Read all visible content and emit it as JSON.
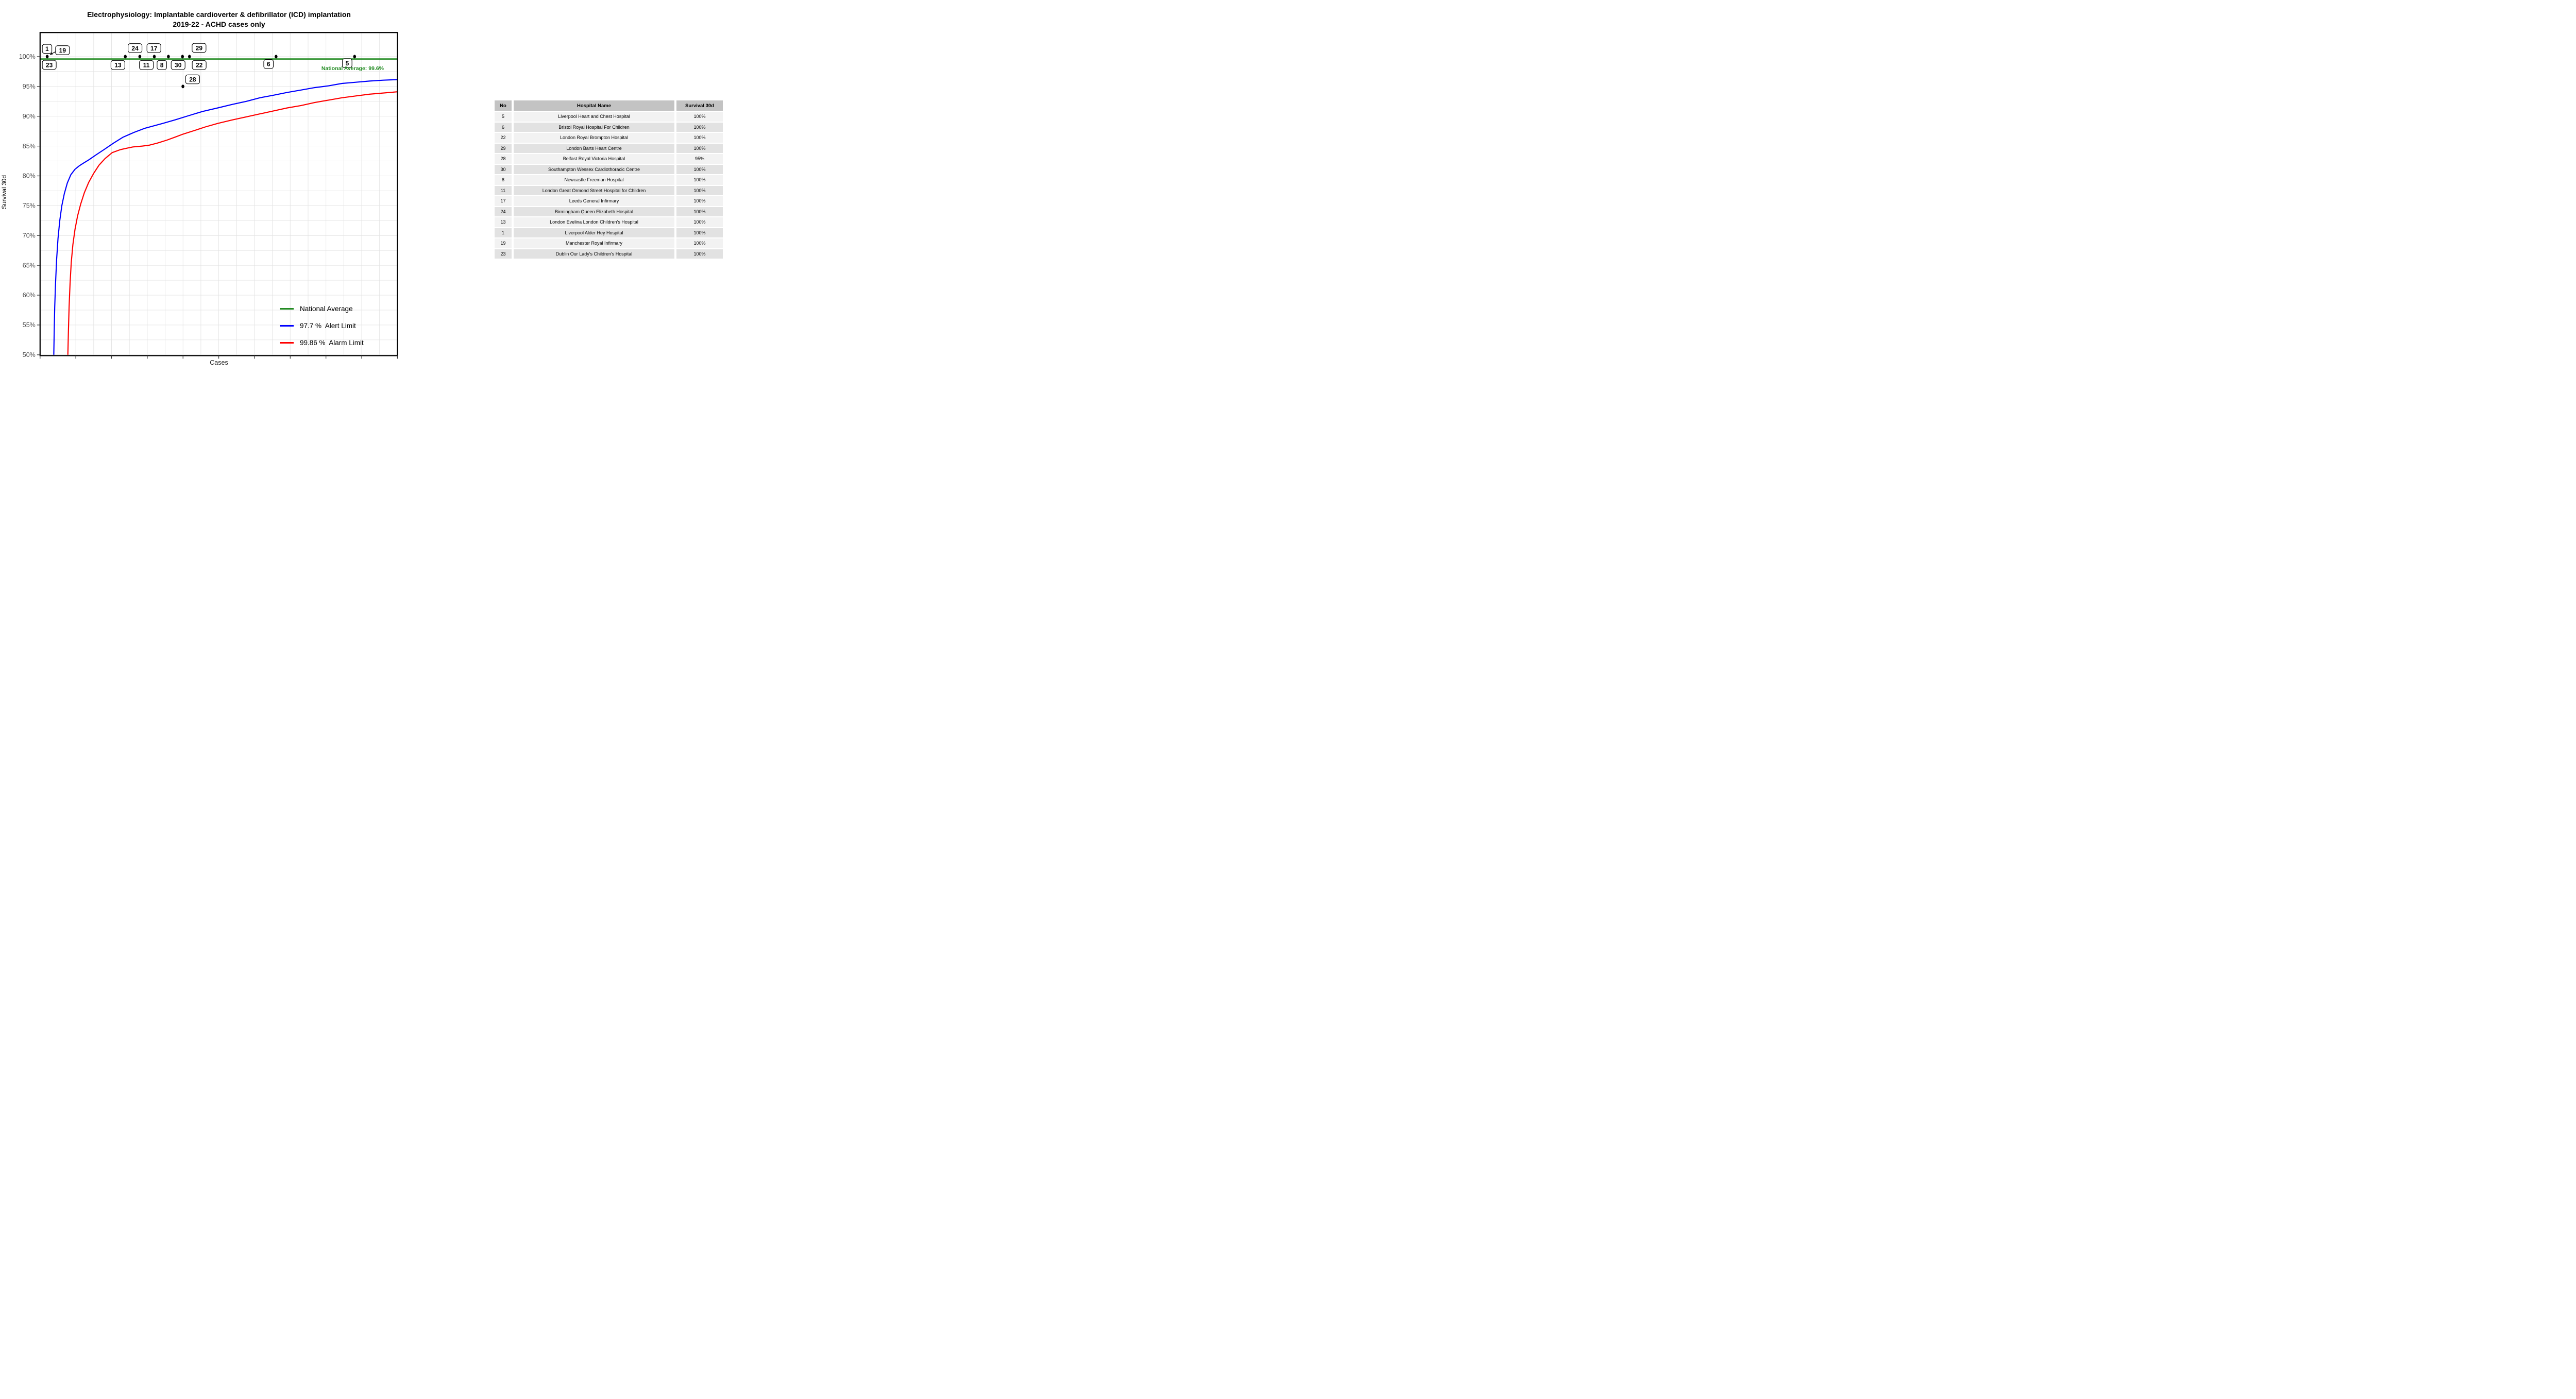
{
  "title": {
    "line1": "Electrophysiology: Implantable cardioverter & defibrillator (ICD) implantation",
    "line2": "2019-22 - ACHD cases only"
  },
  "axes": {
    "y_label": "Survival 30d",
    "x_label": "Cases",
    "y_tick_labels": [
      "100%",
      "95%",
      "90%",
      "85%",
      "80%",
      "75%",
      "70%",
      "65%",
      "60%",
      "55%",
      "50%"
    ]
  },
  "annotation": {
    "national_average_text": "National Average: 99.6%"
  },
  "legend": {
    "items": [
      {
        "label": "National Average",
        "color": "#228B22"
      },
      {
        "label": "97.7 %  Alert Limit",
        "color": "#0000FF"
      },
      {
        "label": "99.86 %  Alarm Limit",
        "color": "#FF0000"
      }
    ]
  },
  "colors": {
    "national_average": "#228B22",
    "alert_limit": "#0000FF",
    "alarm_limit": "#FF0000",
    "grid": "#e3e3e3",
    "axis": "#000000",
    "tick_text": "#4d4d4d",
    "point": "#000000",
    "table_header_bg": "#c3c3c3",
    "table_row_light": "#f2f2f2",
    "table_row_dark": "#e2e2e2"
  },
  "chart_data": {
    "type": "line",
    "title": "Electrophysiology: Implantable cardioverter & defibrillator (ICD) implantation 2019-22 - ACHD cases only",
    "xlabel": "Cases",
    "ylabel": "Survival 30d",
    "ylim": [
      50,
      100
    ],
    "y_tick_step": 5,
    "grid": "on",
    "legend_position": "inside-bottom-right",
    "national_average_pct": 99.6,
    "series": [
      {
        "name": "National Average",
        "style": "horizontal-line",
        "pct": 99.6
      },
      {
        "name": "97.7 %  Alert Limit",
        "style": "curve",
        "points": [
          [
            393,
            50
          ],
          [
            396,
            54
          ],
          [
            400,
            58
          ],
          [
            406,
            62
          ],
          [
            414,
            66
          ],
          [
            424,
            69.5
          ],
          [
            437,
            72.5
          ],
          [
            452,
            75
          ],
          [
            470,
            77
          ],
          [
            492,
            78.8
          ],
          [
            518,
            80.2
          ],
          [
            548,
            81.1
          ],
          [
            580,
            81.7
          ],
          [
            607,
            82.1
          ],
          [
            650,
            82.7
          ],
          [
            700,
            83.5
          ],
          [
            760,
            84.4
          ],
          [
            830,
            85.5
          ],
          [
            900,
            86.5
          ],
          [
            980,
            87.3
          ],
          [
            1060,
            88.0
          ],
          [
            1190,
            88.8
          ],
          [
            1280,
            89.4
          ],
          [
            1380,
            90.1
          ],
          [
            1480,
            90.8
          ],
          [
            1592,
            91.4
          ],
          [
            1700,
            92.0
          ],
          [
            1800,
            92.5
          ],
          [
            1900,
            93.1
          ],
          [
            1993,
            93.5
          ],
          [
            2100,
            94.0
          ],
          [
            2200,
            94.4
          ],
          [
            2300,
            94.8
          ],
          [
            2400,
            95.1
          ],
          [
            2500,
            95.5
          ],
          [
            2600,
            95.7
          ],
          [
            2700,
            95.9
          ],
          [
            2800,
            96.05
          ],
          [
            2905,
            96.15
          ]
        ]
      },
      {
        "name": "99.86 %  Alarm Limit",
        "style": "curve",
        "points": [
          [
            496,
            50
          ],
          [
            500,
            54
          ],
          [
            505,
            58
          ],
          [
            512,
            62
          ],
          [
            521,
            65.5
          ],
          [
            533,
            68.5
          ],
          [
            548,
            71
          ],
          [
            567,
            73.3
          ],
          [
            590,
            75.3
          ],
          [
            617,
            77.2
          ],
          [
            648,
            78.9
          ],
          [
            684,
            80.4
          ],
          [
            724,
            81.8
          ],
          [
            768,
            82.9
          ],
          [
            820,
            83.9
          ],
          [
            880,
            84.4
          ],
          [
            930,
            84.65
          ],
          [
            971,
            84.85
          ],
          [
            1040,
            85.0
          ],
          [
            1090,
            85.15
          ],
          [
            1150,
            85.5
          ],
          [
            1220,
            86.0
          ],
          [
            1280,
            86.5
          ],
          [
            1338,
            87.0
          ],
          [
            1420,
            87.6
          ],
          [
            1500,
            88.2
          ],
          [
            1592,
            88.8
          ],
          [
            1700,
            89.4
          ],
          [
            1800,
            89.9
          ],
          [
            1900,
            90.4
          ],
          [
            2000,
            90.9
          ],
          [
            2100,
            91.4
          ],
          [
            2200,
            91.8
          ],
          [
            2300,
            92.3
          ],
          [
            2400,
            92.7
          ],
          [
            2500,
            93.1
          ],
          [
            2600,
            93.4
          ],
          [
            2700,
            93.7
          ],
          [
            2800,
            93.9
          ],
          [
            2905,
            94.1
          ]
        ]
      }
    ],
    "hospital_points": [
      {
        "no": "1",
        "x": 345,
        "pct": 100,
        "label_cx": 344,
        "label_cy": 357
      },
      {
        "no": "19",
        "x": 345,
        "pct": 100,
        "label_cx": 457,
        "label_cy": 367,
        "arrow": {
          "x1": 414,
          "y1": 374,
          "x2": 366,
          "y2": 399
        }
      },
      {
        "no": "23",
        "x": 345,
        "pct": 100,
        "label_cx": 360,
        "label_cy": 474
      },
      {
        "no": "24",
        "x": 916,
        "pct": 100,
        "label_cx": 987,
        "label_cy": 352
      },
      {
        "no": "13",
        "x": 916,
        "pct": 100,
        "label_cx": 862,
        "label_cy": 475
      },
      {
        "no": "17",
        "x": 1022,
        "pct": 100,
        "label_cx": 1125,
        "label_cy": 352
      },
      {
        "no": "11",
        "x": 1128,
        "pct": 100,
        "label_cx": 1070,
        "label_cy": 475
      },
      {
        "no": "8",
        "x": 1231,
        "pct": 100,
        "label_cx": 1183,
        "label_cy": 475
      },
      {
        "no": "30",
        "x": 1334,
        "pct": 100,
        "label_cx": 1302,
        "label_cy": 475
      },
      {
        "no": "29",
        "x": 1385,
        "pct": 100,
        "label_cx": 1455,
        "label_cy": 350
      },
      {
        "no": "22",
        "x": 1385,
        "pct": 100,
        "label_cx": 1456,
        "label_cy": 475
      },
      {
        "no": "28",
        "x": 1337,
        "pct": 95,
        "label_cx": 1408,
        "label_cy": 580
      },
      {
        "no": "6",
        "x": 2018,
        "pct": 100,
        "label_cx": 1963,
        "label_cy": 468
      },
      {
        "no": "5",
        "x": 2592,
        "pct": 100,
        "label_cx": 2538,
        "label_cy": 462
      }
    ]
  },
  "table": {
    "headers": [
      "No",
      "Hospital Name",
      "Survival 30d"
    ],
    "rows": [
      {
        "no": "5",
        "name": "Liverpool Heart and Chest Hospital",
        "survival": "100%"
      },
      {
        "no": "6",
        "name": "Bristol Royal Hospital For Children",
        "survival": "100%"
      },
      {
        "no": "22",
        "name": "London Royal Brompton Hospital",
        "survival": "100%"
      },
      {
        "no": "29",
        "name": "London Barts Heart Centre",
        "survival": "100%"
      },
      {
        "no": "28",
        "name": "Belfast Royal Victoria Hospital",
        "survival": "95%"
      },
      {
        "no": "30",
        "name": "Southampton Wessex Cardiothoracic Centre",
        "survival": "100%"
      },
      {
        "no": "8",
        "name": "Newcastle Freeman Hospital",
        "survival": "100%"
      },
      {
        "no": "11",
        "name": "London Great Ormond Street Hospital for Children",
        "survival": "100%"
      },
      {
        "no": "17",
        "name": "Leeds General Infirmary",
        "survival": "100%"
      },
      {
        "no": "24",
        "name": "Birmingham Queen Elizabeth Hospital",
        "survival": "100%"
      },
      {
        "no": "13",
        "name": "London Evelina London Children's Hospital",
        "survival": "100%"
      },
      {
        "no": "1",
        "name": "Liverpool Alder Hey Hospital",
        "survival": "100%"
      },
      {
        "no": "19",
        "name": "Manchester Royal Infirmary",
        "survival": "100%"
      },
      {
        "no": "23",
        "name": "Dublin Our Lady's Children's Hospital",
        "survival": "100%"
      }
    ]
  }
}
